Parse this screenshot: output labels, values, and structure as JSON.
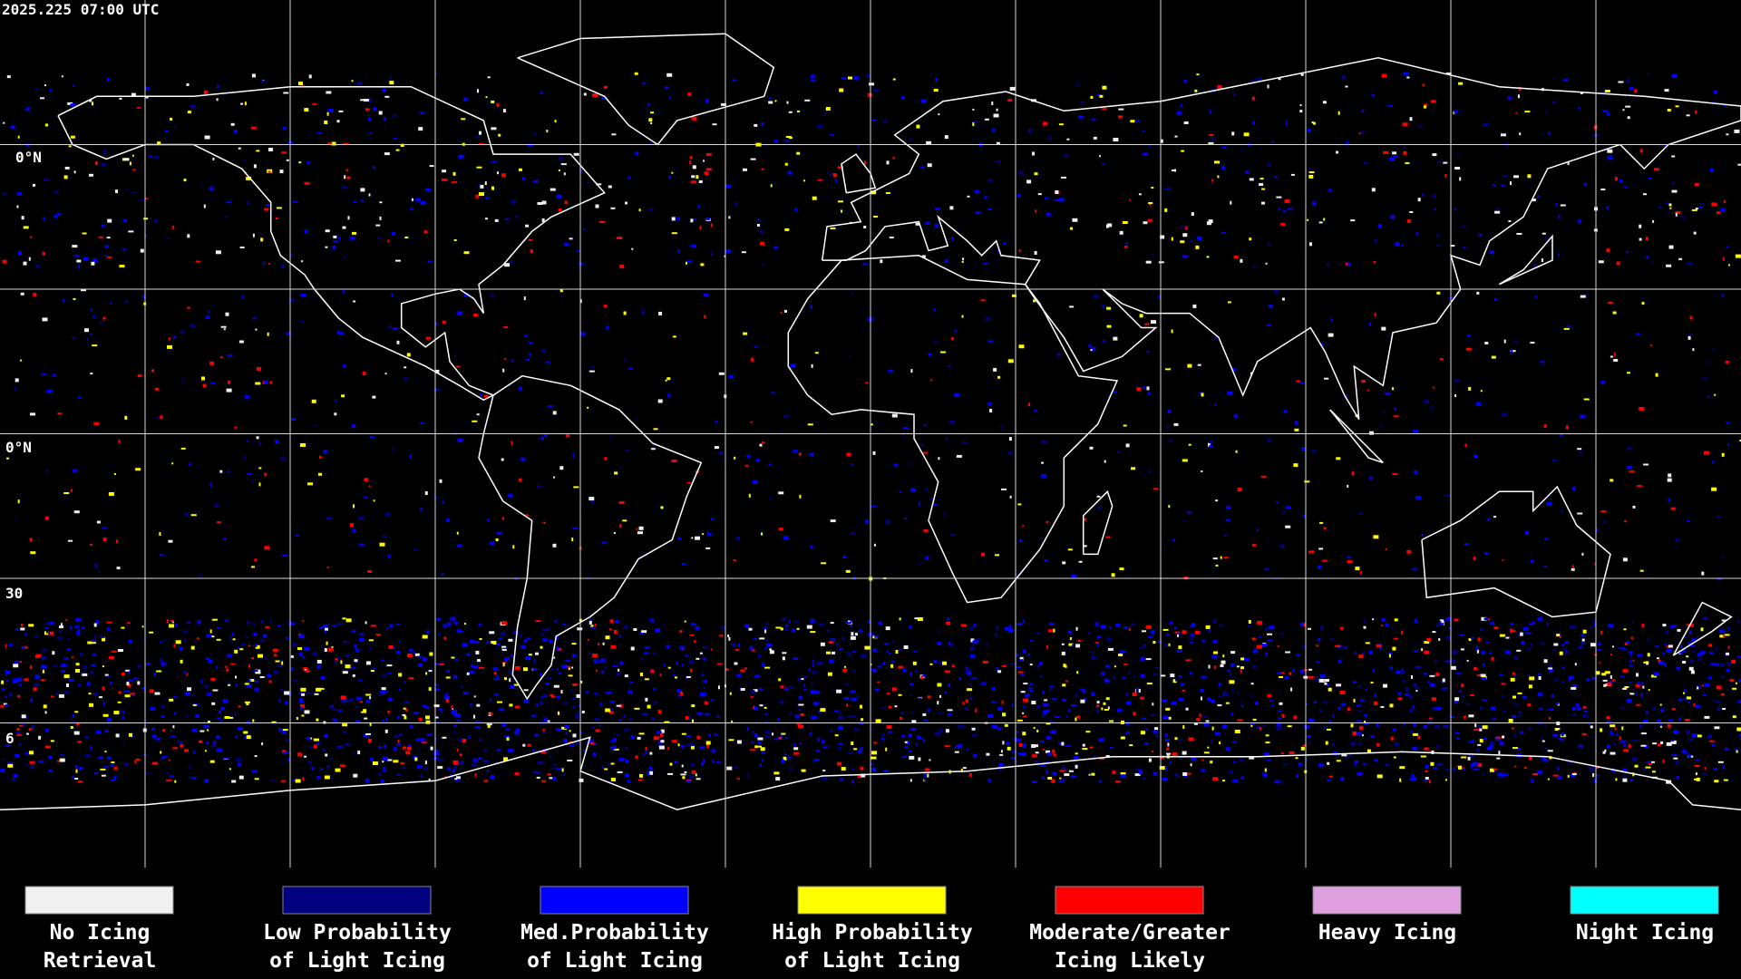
{
  "header": {
    "timestamp": "2025.225 07:00 UTC"
  },
  "map": {
    "latitude_labels": [
      "0°N",
      "0°N",
      "30",
      "6"
    ]
  },
  "legend": [
    {
      "color": "#f0f0f0",
      "label": [
        "No Icing",
        "Retrieval"
      ]
    },
    {
      "color": "#000080",
      "label": [
        "Low Probability",
        "of Light Icing"
      ]
    },
    {
      "color": "#0000ff",
      "label": [
        "Med.Probability",
        "of Light Icing"
      ]
    },
    {
      "color": "#ffff00",
      "label": [
        "High Probability",
        "of Light Icing"
      ]
    },
    {
      "color": "#ff0000",
      "label": [
        "Moderate/Greater",
        "Icing Likely"
      ]
    },
    {
      "color": "#e0a0e0",
      "label": [
        "Heavy Icing"
      ]
    },
    {
      "color": "#00ffff",
      "label": [
        "Night Icing"
      ]
    }
  ]
}
